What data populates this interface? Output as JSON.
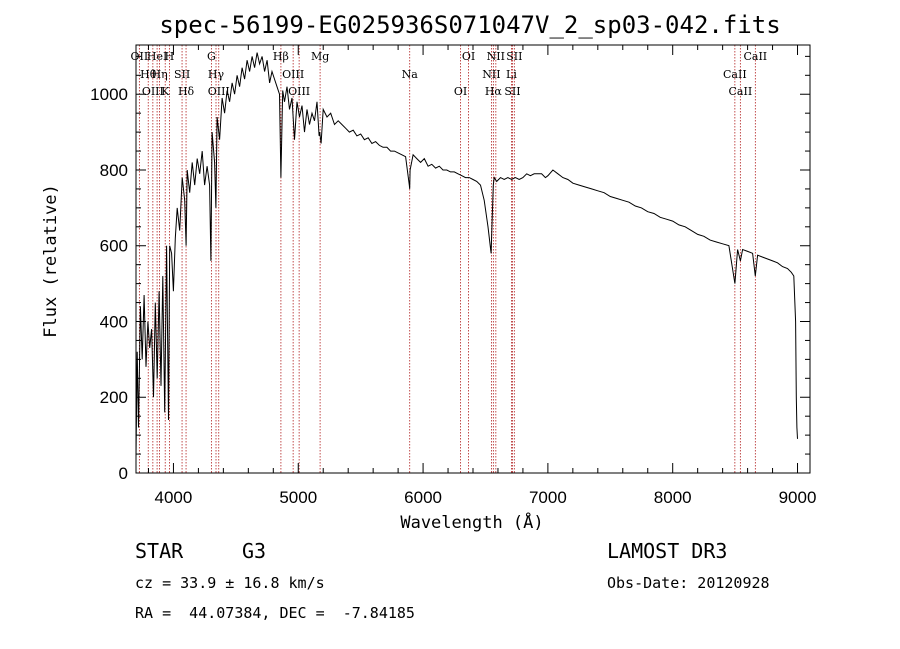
{
  "chart_data": {
    "type": "line",
    "title": "spec-56199-EG025936S071047V_2_sp03-042.fits",
    "xlabel": "Wavelength (Å)",
    "ylabel": "Flux (relative)",
    "xlim": [
      3700,
      9100
    ],
    "ylim": [
      0,
      1130
    ],
    "xticks": [
      4000,
      5000,
      6000,
      7000,
      8000,
      9000
    ],
    "yticks": [
      0,
      200,
      400,
      600,
      800,
      1000
    ],
    "xtick_labels": [
      "4000",
      "5000",
      "6000",
      "7000",
      "8000",
      "9000"
    ],
    "ytick_labels": [
      "0",
      "200",
      "400",
      "600",
      "800",
      "1000"
    ],
    "series": [
      {
        "name": "flux",
        "x": [
          3700,
          3710,
          3720,
          3735,
          3750,
          3765,
          3780,
          3795,
          3810,
          3825,
          3840,
          3855,
          3870,
          3885,
          3900,
          3915,
          3930,
          3945,
          3960,
          3970,
          3985,
          4000,
          4015,
          4030,
          4050,
          4070,
          4090,
          4101,
          4110,
          4130,
          4150,
          4170,
          4190,
          4210,
          4230,
          4250,
          4270,
          4290,
          4300,
          4310,
          4330,
          4340,
          4350,
          4370,
          4390,
          4410,
          4430,
          4450,
          4470,
          4490,
          4510,
          4530,
          4550,
          4570,
          4590,
          4610,
          4630,
          4650,
          4670,
          4690,
          4710,
          4730,
          4750,
          4770,
          4790,
          4810,
          4830,
          4850,
          4861,
          4875,
          4890,
          4910,
          4930,
          4950,
          4970,
          4990,
          5010,
          5030,
          5050,
          5070,
          5090,
          5110,
          5130,
          5150,
          5167,
          5172,
          5183,
          5200,
          5230,
          5260,
          5290,
          5320,
          5350,
          5380,
          5410,
          5440,
          5470,
          5500,
          5530,
          5560,
          5590,
          5620,
          5650,
          5680,
          5710,
          5740,
          5770,
          5800,
          5830,
          5860,
          5890,
          5893,
          5896,
          5920,
          5950,
          5980,
          6010,
          6040,
          6070,
          6100,
          6130,
          6160,
          6190,
          6220,
          6250,
          6280,
          6310,
          6340,
          6370,
          6400,
          6430,
          6460,
          6490,
          6520,
          6545,
          6555,
          6563,
          6570,
          6590,
          6620,
          6650,
          6680,
          6710,
          6740,
          6770,
          6800,
          6830,
          6860,
          6890,
          6920,
          6950,
          6980,
          7000,
          7040,
          7080,
          7120,
          7160,
          7200,
          7250,
          7300,
          7350,
          7400,
          7450,
          7500,
          7550,
          7600,
          7650,
          7700,
          7750,
          7800,
          7850,
          7900,
          7950,
          8000,
          8050,
          8100,
          8150,
          8200,
          8250,
          8300,
          8350,
          8400,
          8450,
          8498,
          8520,
          8542,
          8560,
          8600,
          8640,
          8662,
          8680,
          8720,
          8760,
          8800,
          8840,
          8880,
          8920,
          8950,
          8970,
          8985,
          8990,
          8995,
          9000
        ],
        "y": [
          40,
          320,
          120,
          440,
          300,
          470,
          280,
          400,
          330,
          380,
          200,
          450,
          250,
          480,
          230,
          520,
          160,
          600,
          140,
          600,
          580,
          480,
          620,
          700,
          640,
          780,
          720,
          600,
          800,
          740,
          820,
          760,
          830,
          790,
          850,
          760,
          810,
          760,
          560,
          900,
          820,
          700,
          940,
          880,
          990,
          950,
          1010,
          980,
          1030,
          1000,
          1050,
          1020,
          1070,
          1040,
          1090,
          1060,
          1100,
          1070,
          1110,
          1080,
          1100,
          1060,
          1090,
          1030,
          1060,
          1040,
          1020,
          1000,
          780,
          1010,
          980,
          1020,
          960,
          990,
          880,
          980,
          940,
          970,
          900,
          960,
          920,
          950,
          930,
          980,
          890,
          900,
          870,
          960,
          940,
          950,
          920,
          930,
          920,
          910,
          900,
          905,
          890,
          895,
          880,
          885,
          870,
          875,
          865,
          860,
          860,
          850,
          850,
          845,
          840,
          835,
          760,
          750,
          800,
          840,
          830,
          820,
          830,
          810,
          815,
          805,
          810,
          800,
          800,
          795,
          795,
          790,
          785,
          780,
          780,
          775,
          770,
          760,
          720,
          650,
          580,
          680,
          760,
          780,
          770,
          780,
          775,
          780,
          775,
          780,
          775,
          780,
          790,
          785,
          790,
          790,
          790,
          780,
          785,
          800,
          790,
          780,
          775,
          765,
          760,
          755,
          750,
          745,
          740,
          730,
          725,
          720,
          715,
          705,
          700,
          690,
          685,
          675,
          670,
          665,
          655,
          650,
          640,
          630,
          625,
          615,
          610,
          605,
          600,
          500,
          590,
          560,
          590,
          585,
          580,
          520,
          575,
          570,
          565,
          560,
          555,
          545,
          540,
          530,
          520,
          400,
          200,
          120,
          90
        ]
      }
    ],
    "emission_lines": [
      {
        "wave": 3727,
        "label": "OII"
      },
      {
        "wave": 3798,
        "label": "Hθ"
      },
      {
        "wave": 3835,
        "label": "OIII"
      },
      {
        "wave": 3869,
        "label": "HeI"
      },
      {
        "wave": 3889,
        "label": "Hη"
      },
      {
        "wave": 3934,
        "label": "K"
      },
      {
        "wave": 3968,
        "label": "H"
      },
      {
        "wave": 4069,
        "label": "SII"
      },
      {
        "wave": 4101,
        "label": "Hδ"
      },
      {
        "wave": 4304,
        "label": "G"
      },
      {
        "wave": 4341,
        "label": "Hγ"
      },
      {
        "wave": 4363,
        "label": "OIII"
      },
      {
        "wave": 4861,
        "label": "Hβ"
      },
      {
        "wave": 4959,
        "label": "OIII"
      },
      {
        "wave": 5007,
        "label": "OIII"
      },
      {
        "wave": 5175,
        "label": "Mg"
      },
      {
        "wave": 5893,
        "label": "Na"
      },
      {
        "wave": 6300,
        "label": "OI"
      },
      {
        "wave": 6364,
        "label": "OI"
      },
      {
        "wave": 6548,
        "label": "NII"
      },
      {
        "wave": 6563,
        "label": "Hα"
      },
      {
        "wave": 6583,
        "label": "NII"
      },
      {
        "wave": 6708,
        "label": "Li"
      },
      {
        "wave": 6716,
        "label": "SII"
      },
      {
        "wave": 6731,
        "label": "SII"
      },
      {
        "wave": 8498,
        "label": "CaII"
      },
      {
        "wave": 8542,
        "label": "CaII"
      },
      {
        "wave": 8662,
        "label": "CaII"
      }
    ]
  },
  "info": {
    "object_class": "STAR",
    "subclass": "G3",
    "survey": "LAMOST DR3",
    "cz_line": "cz = 33.9 ± 16.8 km/s",
    "obs_date_line": "Obs-Date: 20120928",
    "radec_line": "RA =  44.07384, DEC =  -7.84185"
  },
  "colors": {
    "emission_line": "#b22222",
    "spectrum": "#000000",
    "axes": "#000000"
  }
}
